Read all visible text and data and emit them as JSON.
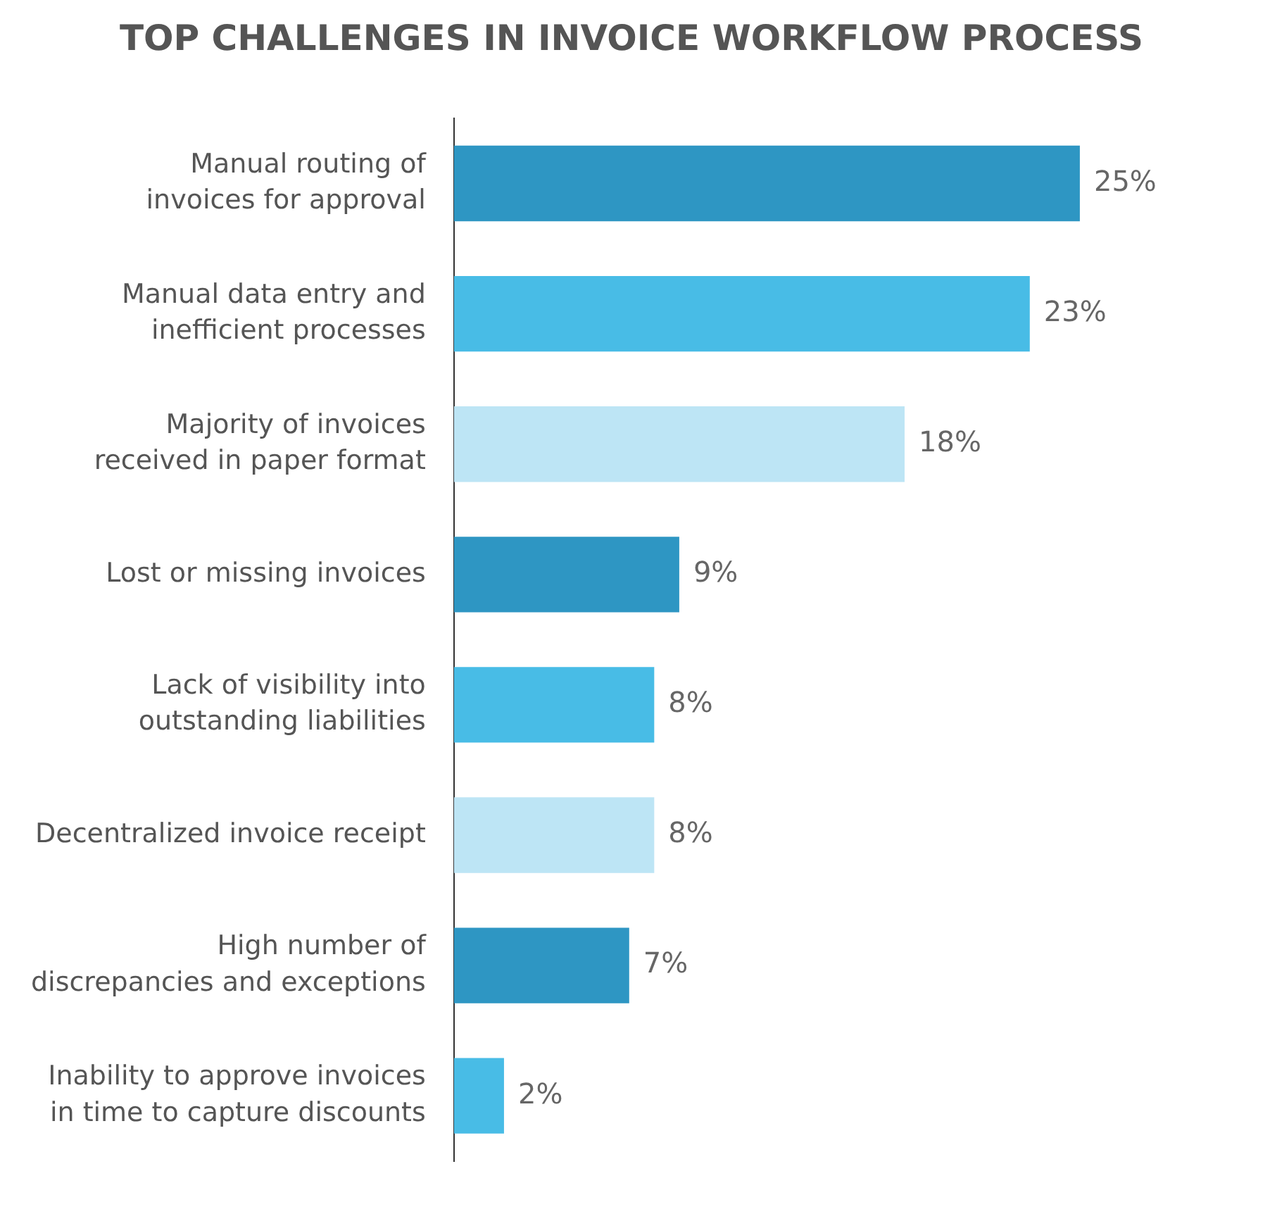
{
  "chart_data": {
    "type": "bar",
    "orientation": "horizontal",
    "title": "TOP CHALLENGES IN INVOICE WORKFLOW PROCESS",
    "categories": [
      "Manual routing of invoices for approval",
      "Manual data entry and inefficient processes",
      "Majority of invoices received in paper format",
      "Lost or missing invoices",
      "Lack of visibility into outstanding liabilities",
      "Decentralized invoice receipt",
      "High number of discrepancies and exceptions",
      "Inability to approve invoices in time to capture discounts"
    ],
    "values": [
      25,
      23,
      18,
      9,
      8,
      8,
      7,
      2
    ],
    "colors": [
      "#2e96c3",
      "#48bce6",
      "#bde5f5",
      "#2e96c3",
      "#48bce6",
      "#bde5f5",
      "#2e96c3",
      "#48bce6"
    ],
    "value_labels": [
      "25%",
      "23%",
      "18%",
      "9%",
      "8%",
      "8%",
      "7%",
      "2%"
    ],
    "legend": false
  }
}
